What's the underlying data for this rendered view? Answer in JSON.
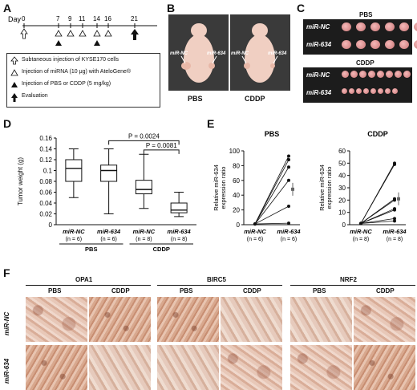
{
  "panels": {
    "A": "A",
    "B": "B",
    "C": "C",
    "D": "D",
    "E": "E",
    "F": "F"
  },
  "timeline": {
    "day_label": "Day",
    "days": [
      "0",
      "7",
      "9",
      "11",
      "14",
      "16",
      "21"
    ],
    "legend": [
      "Subtaneous injection of KYSE170 cells",
      "Injection of miRNA (10 μg) with AteloGene®",
      "Injection of PBS or CDDP (5 mg/kg)",
      "Evaluation"
    ]
  },
  "mouse_photos": {
    "nc_label": "miR-NC",
    "m634_label": "miR-634",
    "captions": [
      "PBS",
      "CDDP"
    ]
  },
  "tumor_photos": {
    "groups": [
      "PBS",
      "CDDP"
    ],
    "rows": [
      "miR-NC",
      "miR-634"
    ]
  },
  "chart_data": [
    {
      "type": "box",
      "ylabel": "Tumor weight (g)",
      "ylim": [
        0,
        0.16
      ],
      "yticks": [
        "0",
        "0.02",
        "0.04",
        "0.06",
        "0.08",
        "0.1",
        "0.12",
        "0.14",
        "0.16"
      ],
      "categories": [
        "miR-NC",
        "miR-634",
        "miR-NC",
        "miR-634"
      ],
      "n_labels": [
        "(n = 6)",
        "(n = 6)",
        "(n = 8)",
        "(n = 8)"
      ],
      "group_labels": [
        "PBS",
        "CDDP"
      ],
      "boxes": [
        {
          "min": 0.05,
          "q1": 0.08,
          "median": 0.104,
          "q3": 0.12,
          "max": 0.14
        },
        {
          "min": 0.02,
          "q1": 0.08,
          "median": 0.1,
          "q3": 0.11,
          "max": 0.14
        },
        {
          "min": 0.03,
          "q1": 0.057,
          "median": 0.065,
          "q3": 0.082,
          "max": 0.13
        },
        {
          "min": 0.015,
          "q1": 0.022,
          "median": 0.027,
          "q3": 0.04,
          "max": 0.06
        }
      ],
      "annotations": [
        "P = 0.0024",
        "P = 0.0081"
      ]
    },
    {
      "type": "line",
      "title": "PBS",
      "ylabel": "Relative miR-634 expression ratio",
      "ylim": [
        0,
        100
      ],
      "yticks": [
        "0",
        "20",
        "40",
        "60",
        "80",
        "100"
      ],
      "x": [
        "miR-NC",
        "miR-634"
      ],
      "n_labels": [
        "(n = 6)",
        "(n = 6)"
      ],
      "end_values": [
        93,
        88,
        78,
        60,
        25,
        2
      ],
      "mean": 48
    },
    {
      "type": "line",
      "title": "CDDP",
      "ylabel": "Relative miR-634 expression ratio",
      "ylim": [
        0,
        60
      ],
      "yticks": [
        "0",
        "10",
        "20",
        "30",
        "40",
        "50",
        "60"
      ],
      "x": [
        "miR-NC",
        "miR-634"
      ],
      "n_labels": [
        "(n = 8)",
        "(n = 8)"
      ],
      "end_values": [
        50,
        49,
        21,
        20,
        13,
        12,
        5,
        3
      ],
      "mean": 21
    }
  ],
  "ihc": {
    "markers": [
      "OPA1",
      "BIRC5",
      "NRF2"
    ],
    "conditions": [
      "PBS",
      "CDDP"
    ],
    "rows": [
      "miR-NC",
      "miR-634"
    ]
  }
}
